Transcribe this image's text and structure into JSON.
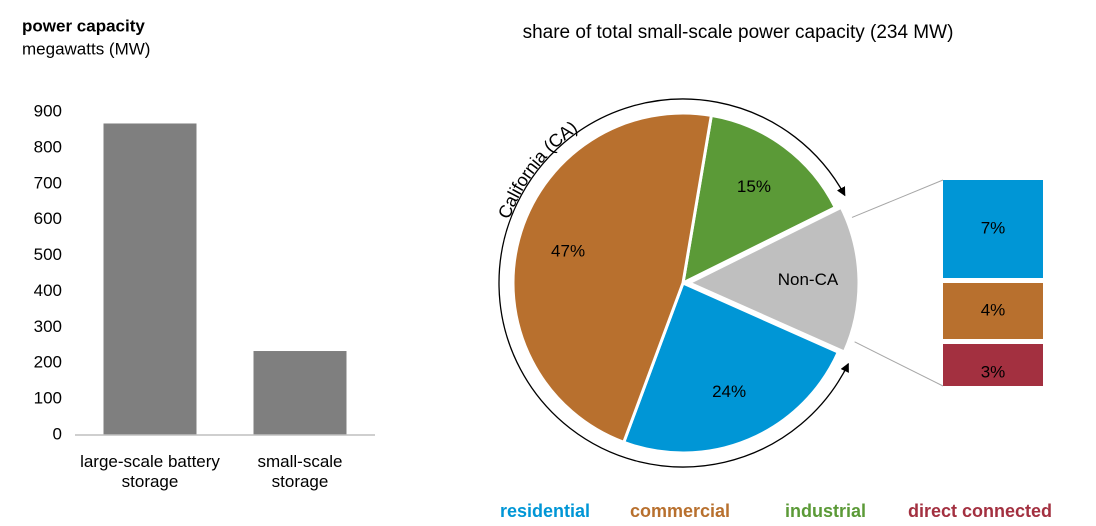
{
  "chart_data": [
    {
      "type": "bar",
      "title": "power capacity",
      "subtitle": "megawatts (MW)",
      "categories": [
        "large-scale battery storage",
        "small-scale storage"
      ],
      "values": [
        868,
        234
      ],
      "color": "#7f7f7f",
      "ylim": [
        0,
        900
      ],
      "yticks": [
        0,
        100,
        200,
        300,
        400,
        500,
        600,
        700,
        800,
        900
      ],
      "grid": false
    },
    {
      "type": "pie",
      "title": "share of total small-scale power capacity (234 MW)",
      "annotation": "California (CA)",
      "values": [
        15,
        14,
        24,
        47
      ],
      "value_labels": [
        "15%",
        "Non-CA",
        "24%",
        "47%"
      ],
      "colors": [
        "#5b9a37",
        "#bfbfbf",
        "#0096d6",
        "#b8702e"
      ],
      "breakdown": {
        "values": [
          7,
          4,
          3
        ],
        "value_labels": [
          "7%",
          "4%",
          "3%"
        ],
        "colors": [
          "#0096d6",
          "#b8702e",
          "#a33040"
        ]
      },
      "legend": [
        {
          "name": "residential",
          "color": "#0096d6"
        },
        {
          "name": "commercial",
          "color": "#b8702e"
        },
        {
          "name": "industrial",
          "color": "#5b9a37"
        },
        {
          "name": "direct connected",
          "color": "#a33040"
        }
      ]
    }
  ]
}
